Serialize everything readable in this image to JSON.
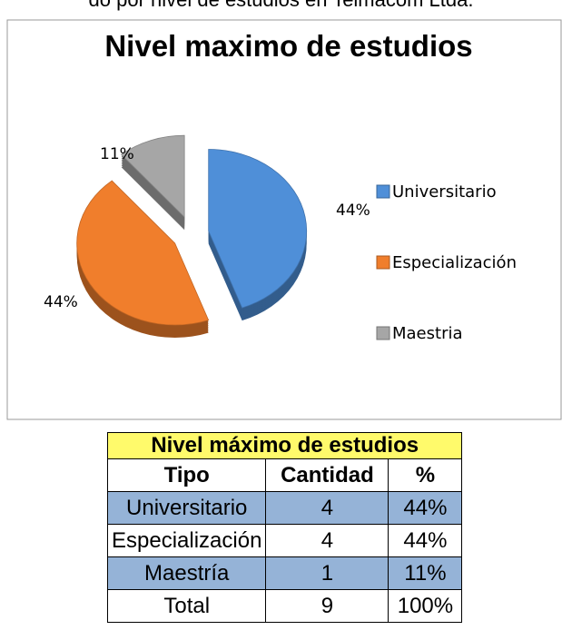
{
  "caption": "do por nivel de estudios en Telmacom Ltda.",
  "chart_data": {
    "type": "pie",
    "title": "Nivel maximo de estudios",
    "categories": [
      "Universitario",
      "Especialización",
      "Maestria"
    ],
    "values": [
      44,
      44,
      11
    ],
    "value_labels": [
      "44%",
      "44%",
      "11%"
    ],
    "colors": [
      "#4f8fd8",
      "#f07e2c",
      "#a6a6a6"
    ],
    "legend": "right"
  },
  "table": {
    "title": "Nivel máximo de estudios",
    "header": [
      "Tipo",
      "Cantidad",
      "%"
    ],
    "rows": [
      [
        "Universitario",
        "4",
        "44%"
      ],
      [
        "Especialización",
        "4",
        "44%"
      ],
      [
        "Maestría",
        "1",
        "11%"
      ],
      [
        "Total",
        "9",
        "100%"
      ]
    ]
  }
}
